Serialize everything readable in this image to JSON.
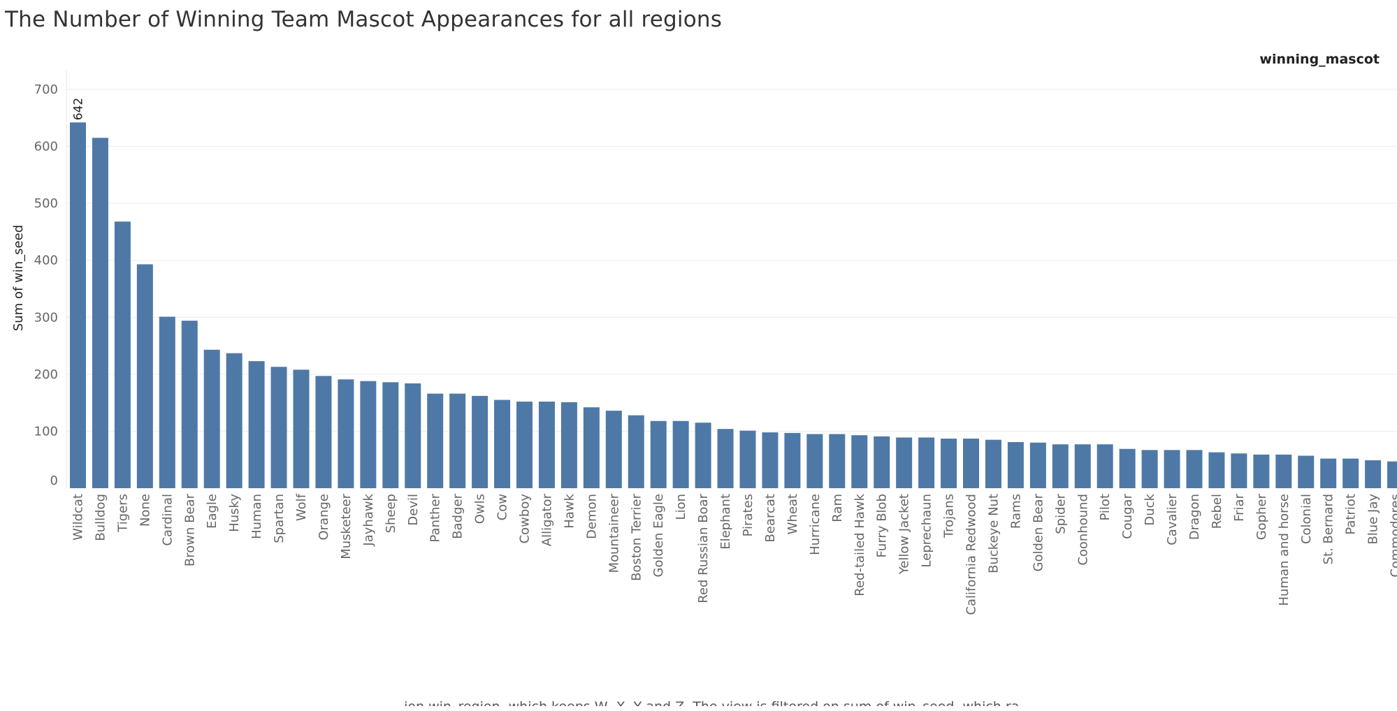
{
  "chart_data": {
    "type": "bar",
    "title": "The Number of Winning Team Mascot Appearances for all regions",
    "legend_title": "winning_mascot",
    "xlabel": "",
    "ylabel": "Sum of win_seed",
    "ylim": [
      0,
      700
    ],
    "yticks": [
      0,
      100,
      200,
      300,
      400,
      500,
      600,
      700
    ],
    "grid": true,
    "bar_color": "#4e79a7",
    "categories": [
      "Wildcat",
      "Bulldog",
      "Tigers",
      "None",
      "Cardinal",
      "Brown Bear",
      "Eagle",
      "Husky",
      "Human",
      "Spartan",
      "Wolf",
      "Orange",
      "Musketeer",
      "Jayhawk",
      "Sheep",
      "Devil",
      "Panther",
      "Badger",
      "Owls",
      "Cow",
      "Cowboy",
      "Alligator",
      "Hawk",
      "Demon",
      "Mountaineer",
      "Boston Terrier",
      "Golden Eagle",
      "Lion",
      "Red Russian Boar",
      "Elephant",
      "Pirates",
      "Bearcat",
      "Wheat",
      "Hurricane",
      "Ram",
      "Red-tailed Hawk",
      "Furry Blob",
      "Yellow Jacket",
      "Leprechaun",
      "Trojans",
      "California Redwood",
      "Buckeye Nut",
      "Rams",
      "Golden Bear",
      "Spider",
      "Coonhound",
      "Pilot",
      "Cougar",
      "Duck",
      "Cavalier",
      "Dragon",
      "Rebel",
      "Friar",
      "Gopher",
      "Human and horse",
      "Colonial",
      "St. Bernard",
      "Patriot",
      "Blue Jay",
      "Commodores"
    ],
    "values": [
      642,
      615,
      468,
      393,
      301,
      294,
      243,
      237,
      223,
      213,
      208,
      197,
      191,
      188,
      186,
      184,
      166,
      166,
      162,
      155,
      152,
      152,
      151,
      142,
      136,
      128,
      118,
      118,
      115,
      104,
      101,
      98,
      97,
      95,
      95,
      93,
      91,
      89,
      89,
      87,
      87,
      85,
      81,
      80,
      77,
      77,
      77,
      69,
      67,
      67,
      67,
      63,
      61,
      59,
      59,
      57,
      52,
      52,
      49,
      47
    ],
    "data_labels": [
      {
        "index": 0,
        "text": "642"
      }
    ],
    "caption": "...ion win_region, which keeps W, X, Y and Z. The view is filtered on sum of win_seed, which ranges f..."
  }
}
